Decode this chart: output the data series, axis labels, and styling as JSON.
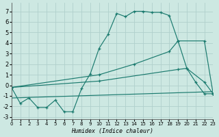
{
  "xlabel": "Humidex (Indice chaleur)",
  "bg_color": "#cde8e2",
  "grid_color": "#b0d0cc",
  "line_color": "#1a7a6e",
  "xlim": [
    0,
    23
  ],
  "ylim": [
    -3.2,
    7.8
  ],
  "xtick_vals": [
    0,
    1,
    2,
    3,
    4,
    5,
    6,
    7,
    8,
    9,
    10,
    11,
    12,
    13,
    14,
    15,
    16,
    17,
    18,
    19,
    20,
    21,
    22,
    23
  ],
  "ytick_vals": [
    -3,
    -2,
    -1,
    0,
    1,
    2,
    3,
    4,
    5,
    6,
    7
  ],
  "curve1_x": [
    0,
    1,
    2,
    3,
    4,
    5,
    6,
    7,
    8,
    9,
    10,
    11,
    12,
    13,
    14,
    15,
    16,
    17,
    18,
    19,
    20,
    21,
    22,
    23
  ],
  "curve1_y": [
    -0.2,
    -1.7,
    -1.2,
    -2.1,
    -2.1,
    -1.4,
    -2.5,
    -2.5,
    -0.3,
    1.1,
    3.5,
    4.8,
    6.8,
    6.5,
    7.0,
    7.0,
    6.9,
    6.9,
    6.6,
    4.2,
    1.6,
    0.3,
    -0.8,
    -0.8
  ],
  "curve2_x": [
    0,
    10,
    14,
    18,
    19,
    22,
    23
  ],
  "curve2_y": [
    -0.2,
    1.0,
    2.0,
    3.2,
    4.2,
    4.2,
    -0.8
  ],
  "curve3_x": [
    0,
    10,
    19,
    20,
    22,
    23
  ],
  "curve3_y": [
    -0.2,
    0.4,
    1.5,
    1.6,
    0.3,
    -0.8
  ],
  "curve4_x": [
    0,
    23
  ],
  "curve4_y": [
    -1.2,
    -0.6
  ]
}
